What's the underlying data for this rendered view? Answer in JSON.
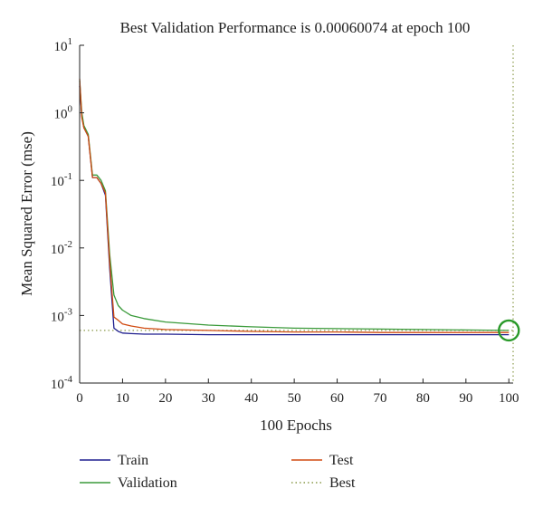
{
  "chart_data": {
    "type": "line",
    "title": "Best Validation Performance is 0.00060074 at epoch 100",
    "xlabel": "100 Epochs",
    "ylabel": "Mean Squared Error (mse)",
    "xlim": [
      0,
      101
    ],
    "ylim": [
      0.0001,
      10
    ],
    "yscale": "log",
    "grid": false,
    "legend_position": "bottom",
    "x_ticks": [
      "0",
      "10",
      "20",
      "30",
      "40",
      "50",
      "60",
      "70",
      "80",
      "90",
      "100"
    ],
    "y_ticks": [
      {
        "base": "10",
        "exp": "1"
      },
      {
        "base": "10",
        "exp": "0"
      },
      {
        "base": "10",
        "exp": "-1"
      },
      {
        "base": "10",
        "exp": "-2"
      },
      {
        "base": "10",
        "exp": "-3"
      },
      {
        "base": "10",
        "exp": "-4"
      }
    ],
    "series": [
      {
        "name": "Train",
        "color": "#1f1f8f",
        "style": "solid",
        "x": [
          0,
          0.5,
          1,
          2,
          3,
          4,
          5,
          6,
          7,
          8,
          9,
          10,
          12,
          15,
          20,
          30,
          40,
          50,
          60,
          70,
          80,
          90,
          100
        ],
        "y": [
          2.5,
          0.9,
          0.6,
          0.45,
          0.11,
          0.11,
          0.09,
          0.06,
          0.005,
          0.00065,
          0.00058,
          0.00055,
          0.00054,
          0.00053,
          0.00053,
          0.00052,
          0.00052,
          0.00052,
          0.00052,
          0.00052,
          0.00052,
          0.00052,
          0.00052
        ]
      },
      {
        "name": "Validation",
        "color": "#3a9a3a",
        "style": "solid",
        "x": [
          0,
          0.5,
          1,
          2,
          3,
          4,
          5,
          6,
          7,
          8,
          9,
          10,
          12,
          15,
          20,
          30,
          40,
          50,
          60,
          70,
          80,
          90,
          100
        ],
        "y": [
          3.0,
          1.0,
          0.65,
          0.48,
          0.12,
          0.12,
          0.1,
          0.07,
          0.008,
          0.002,
          0.0014,
          0.0012,
          0.001,
          0.0009,
          0.0008,
          0.00072,
          0.00068,
          0.00065,
          0.00064,
          0.00063,
          0.00062,
          0.00061,
          0.00060074
        ]
      },
      {
        "name": "Test",
        "color": "#d04a10",
        "style": "solid",
        "x": [
          0,
          0.5,
          1,
          2,
          3,
          4,
          5,
          6,
          7,
          8,
          9,
          10,
          12,
          15,
          20,
          30,
          40,
          50,
          60,
          70,
          80,
          90,
          100
        ],
        "y": [
          3.2,
          0.85,
          0.6,
          0.45,
          0.11,
          0.11,
          0.09,
          0.065,
          0.006,
          0.00095,
          0.00085,
          0.00075,
          0.0007,
          0.00065,
          0.00062,
          0.0006,
          0.00058,
          0.00057,
          0.00057,
          0.00056,
          0.00056,
          0.00056,
          0.00056
        ]
      }
    ],
    "best": {
      "name": "Best",
      "color": "#8a9a4a",
      "style": "dotted",
      "epoch": 100,
      "value": 0.00060074,
      "marker_color": "#2a9a2a"
    },
    "legend": [
      {
        "name": "Train",
        "color": "#1f1f8f",
        "style": "solid"
      },
      {
        "name": "Test",
        "color": "#d04a10",
        "style": "solid"
      },
      {
        "name": "Validation",
        "color": "#3a9a3a",
        "style": "solid"
      },
      {
        "name": "Best",
        "color": "#8a9a4a",
        "style": "dotted"
      }
    ]
  }
}
